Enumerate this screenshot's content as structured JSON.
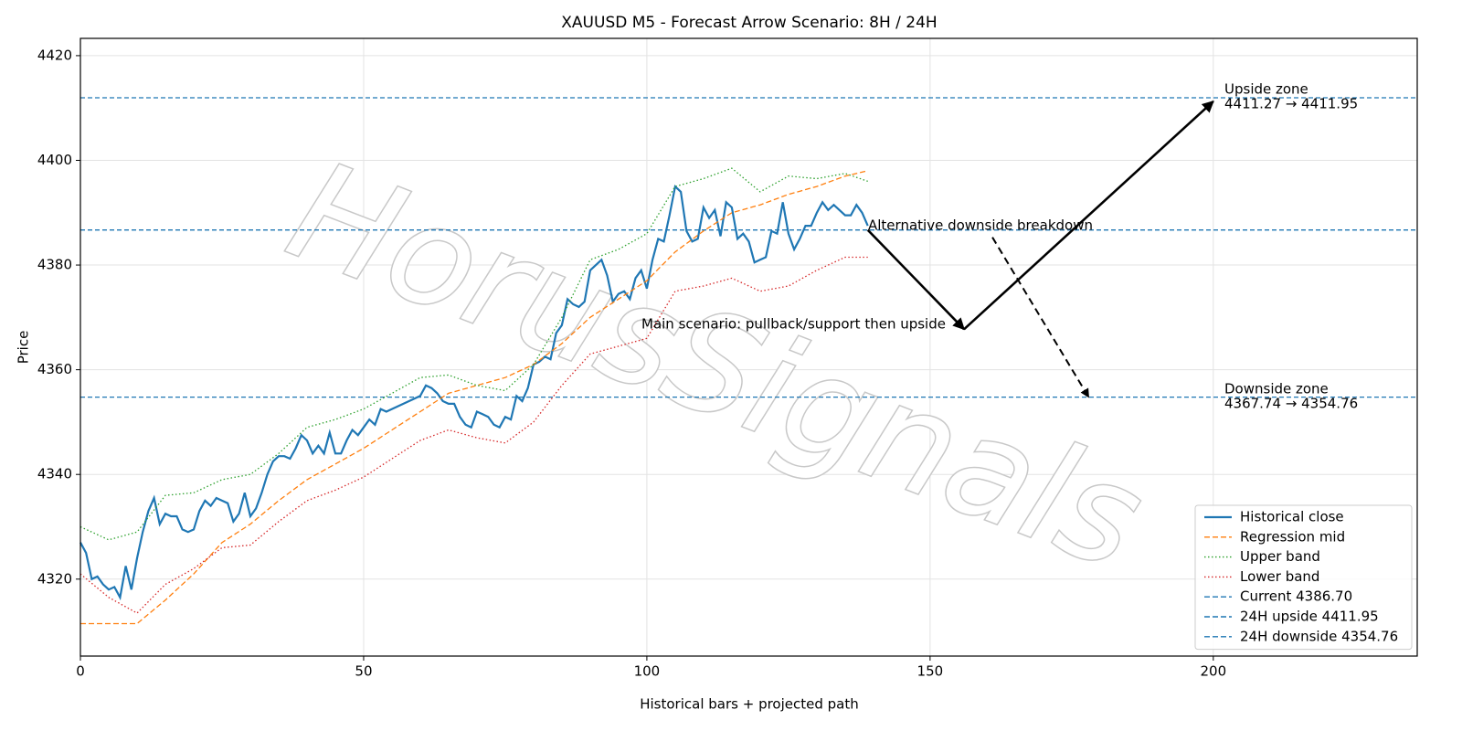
{
  "chart_data": {
    "type": "line",
    "title": "XAUUSD M5 - Forecast Arrow Scenario: 8H / 24H",
    "xlabel": "Historical bars + projected path",
    "ylabel": "Price",
    "watermark": "HorusSignals",
    "xlim": [
      0,
      236
    ],
    "ylim": [
      4305.3,
      4423.3
    ],
    "xticks": [
      0,
      50,
      100,
      150,
      200
    ],
    "yticks": [
      4320,
      4340,
      4360,
      4380,
      4400,
      4420
    ],
    "grid": true,
    "legend": "lower right",
    "series": [
      {
        "name": "Historical close",
        "color": "#1f77b4",
        "style": "solid",
        "x": [
          0,
          1,
          2,
          3,
          4,
          5,
          6,
          7,
          8,
          9,
          10,
          11,
          12,
          13,
          14,
          15,
          16,
          17,
          18,
          19,
          20,
          21,
          22,
          23,
          24,
          25,
          26,
          27,
          28,
          29,
          30,
          31,
          32,
          33,
          34,
          35,
          36,
          37,
          38,
          39,
          40,
          41,
          42,
          43,
          44,
          45,
          46,
          47,
          48,
          49,
          50,
          51,
          52,
          53,
          54,
          55,
          56,
          57,
          58,
          59,
          60,
          61,
          62,
          63,
          64,
          65,
          66,
          67,
          68,
          69,
          70,
          71,
          72,
          73,
          74,
          75,
          76,
          77,
          78,
          79,
          80,
          81,
          82,
          83,
          84,
          85,
          86,
          87,
          88,
          89,
          90,
          91,
          92,
          93,
          94,
          95,
          96,
          97,
          98,
          99,
          100,
          101,
          102,
          103,
          104,
          105,
          106,
          107,
          108,
          109,
          110,
          111,
          112,
          113,
          114,
          115,
          116,
          117,
          118,
          119,
          120,
          121,
          122,
          123,
          124,
          125,
          126,
          127,
          128,
          129,
          130,
          131,
          132,
          133,
          134,
          135,
          136,
          137,
          138,
          139
        ],
        "values": [
          4327,
          4325,
          4320,
          4320.5,
          4319,
          4318,
          4318.5,
          4316.5,
          4322.5,
          4318,
          4324,
          4329,
          4333,
          4335.5,
          4330.5,
          4332.5,
          4332,
          4332,
          4329.5,
          4329,
          4329.5,
          4333,
          4335,
          4334,
          4335.5,
          4335,
          4334.5,
          4331,
          4332.5,
          4336.5,
          4332,
          4333.5,
          4336.5,
          4340,
          4342.5,
          4343.5,
          4343.5,
          4343,
          4345,
          4347.5,
          4346.5,
          4344,
          4345.5,
          4344,
          4348,
          4344,
          4344,
          4346.5,
          4348.5,
          4347.5,
          4349,
          4350.5,
          4349.5,
          4352.5,
          4352,
          4352.5,
          4353,
          4353.5,
          4354,
          4354.5,
          4355,
          4357,
          4356.5,
          4355.5,
          4354,
          4353.5,
          4353.5,
          4351,
          4349.5,
          4349,
          4352,
          4351.5,
          4351,
          4349.5,
          4349,
          4351,
          4350.5,
          4355,
          4354,
          4356.5,
          4361,
          4361.5,
          4362.5,
          4362,
          4367,
          4368.5,
          4373.5,
          4372.5,
          4372,
          4373,
          4379,
          4380,
          4381,
          4378,
          4373,
          4374.5,
          4375,
          4373.5,
          4377.5,
          4379,
          4375.5,
          4381,
          4385,
          4384.5,
          4389.5,
          4395,
          4394,
          4386.5,
          4384.5,
          4385,
          4391,
          4389,
          4390.5,
          4385.5,
          4392,
          4391,
          4385,
          4386,
          4384.5,
          4380.5,
          4381,
          4381.5,
          4386.5,
          4386,
          4392,
          4386,
          4383,
          4385,
          4387.5,
          4387.5,
          4390,
          4392,
          4390.5,
          4391.5,
          4390.5,
          4389.5,
          4389.5,
          4391.5,
          4390,
          4387.5
        ]
      },
      {
        "name": "Regression mid",
        "color": "#ff7f0e",
        "style": "dashed",
        "x": [
          0,
          5,
          10,
          15,
          20,
          25,
          30,
          35,
          40,
          45,
          50,
          55,
          60,
          65,
          70,
          75,
          80,
          85,
          90,
          95,
          100,
          105,
          110,
          115,
          120,
          125,
          130,
          135,
          139
        ],
        "values": [
          4311.5,
          4311.5,
          4311.5,
          4316,
          4321,
          4327,
          4330.5,
          4335,
          4339,
          4342,
          4345,
          4348.5,
          4352,
          4355.5,
          4357,
          4358.5,
          4361,
          4365,
          4370,
          4373.5,
          4377,
          4382.5,
          4386.5,
          4390,
          4391.5,
          4393.5,
          4395,
          4397,
          4398
        ]
      },
      {
        "name": "Upper band",
        "color": "#2ca02c",
        "style": "dotted",
        "x": [
          0,
          5,
          10,
          15,
          20,
          25,
          30,
          35,
          40,
          45,
          50,
          55,
          60,
          65,
          70,
          75,
          80,
          85,
          90,
          95,
          100,
          105,
          110,
          115,
          120,
          125,
          130,
          135,
          139
        ],
        "values": [
          4330,
          4327.5,
          4329,
          4336,
          4336.5,
          4339,
          4340,
          4344,
          4349,
          4350.5,
          4352.5,
          4355.5,
          4358.5,
          4359,
          4357,
          4356,
          4361,
          4370,
          4381,
          4383,
          4386,
          4395,
          4396.5,
          4398.5,
          4394,
          4397,
          4396.5,
          4397.5,
          4396
        ]
      },
      {
        "name": "Lower band",
        "color": "#d62728",
        "style": "dotted",
        "x": [
          0,
          5,
          10,
          15,
          20,
          25,
          30,
          35,
          40,
          45,
          50,
          55,
          60,
          65,
          70,
          75,
          80,
          85,
          90,
          95,
          100,
          105,
          110,
          115,
          120,
          125,
          130,
          135,
          139
        ],
        "values": [
          4321,
          4316.5,
          4313.5,
          4319,
          4322,
          4326,
          4326.5,
          4331,
          4335,
          4337,
          4339.5,
          4343,
          4346.5,
          4348.5,
          4347,
          4346,
          4350,
          4357,
          4363,
          4364.5,
          4366,
          4375,
          4376,
          4377.5,
          4375,
          4376,
          4379,
          4381.5,
          4381.5
        ]
      }
    ],
    "hlines": [
      {
        "name": "Current 4386.70",
        "value": 4386.7,
        "color": "#1f77b4"
      },
      {
        "name": "24H upside 4411.95",
        "value": 4411.95,
        "color": "#1f77b4"
      },
      {
        "name": "24H downside 4354.76",
        "value": 4354.76,
        "color": "#1f77b4"
      }
    ],
    "arrows": [
      {
        "x": [
          139,
          156
        ],
        "y": [
          4386.7,
          4367.74
        ],
        "style": "solid"
      },
      {
        "x": [
          156,
          200
        ],
        "y": [
          4367.74,
          4411.27
        ],
        "style": "solid"
      },
      {
        "x": [
          161,
          178
        ],
        "y": [
          4385.3,
          4354.76
        ],
        "style": "dashed"
      }
    ],
    "annotations": {
      "main": "Main scenario: pullback/support then upside",
      "alternative": "Alternative downside breakdown",
      "upside": [
        "Upside zone",
        "4411.27 → 4411.95"
      ],
      "downside": [
        "Downside zone",
        "4367.74 → 4354.76"
      ]
    }
  }
}
